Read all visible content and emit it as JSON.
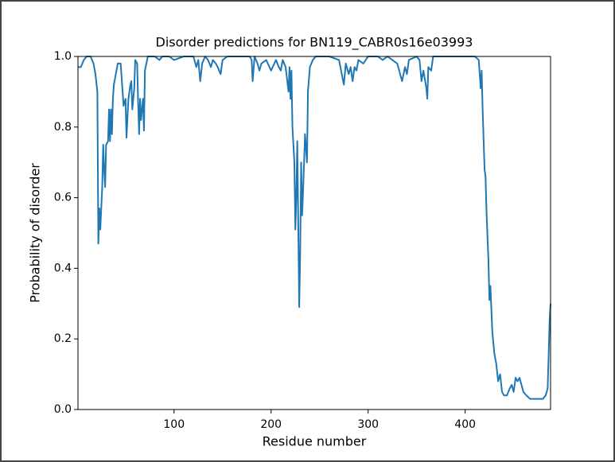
{
  "chart_data": {
    "type": "line",
    "title": "Disorder predictions for BN119_CABR0s16e03993",
    "x_label": "Residue number",
    "y_label": "Probability of disorder",
    "xlim": [
      1,
      488
    ],
    "ylim": [
      0,
      1
    ],
    "xticks": [
      100,
      200,
      300,
      400
    ],
    "yticks": [
      {
        "value": 0,
        "label": "0.0"
      },
      {
        "value": 0.2,
        "label": "0.2"
      },
      {
        "value": 0.4,
        "label": "0.4"
      },
      {
        "value": 0.6,
        "label": "0.6"
      },
      {
        "value": 0.8,
        "label": "0.8"
      },
      {
        "value": 1,
        "label": "1.0"
      }
    ],
    "grid": false,
    "series": [
      {
        "color": "#1f77b4",
        "x": [
          1,
          4,
          7,
          10,
          14,
          17,
          19,
          21,
          22,
          23,
          24,
          26,
          27,
          28,
          29,
          30,
          32,
          33,
          34,
          35,
          36,
          37,
          38,
          40,
          42,
          45,
          47,
          48,
          50,
          51,
          53,
          55,
          56,
          57,
          59,
          60,
          62,
          63,
          64,
          65,
          66,
          68,
          69,
          70,
          73,
          80,
          85,
          88,
          95,
          100,
          110,
          120,
          123,
          125,
          127,
          129,
          132,
          135,
          138,
          140,
          143,
          145,
          148,
          150,
          155,
          170,
          178,
          180,
          181,
          183,
          186,
          188,
          190,
          195,
          200,
          205,
          208,
          210,
          212,
          215,
          218,
          219,
          220,
          221,
          222,
          224,
          225,
          226,
          227,
          229,
          230,
          231,
          232,
          233,
          235,
          237,
          238,
          240,
          243,
          246,
          260,
          270,
          275,
          277,
          280,
          282,
          284,
          286,
          288,
          290,
          295,
          300,
          310,
          315,
          320,
          330,
          335,
          338,
          340,
          342,
          350,
          353,
          355,
          357,
          360,
          361,
          362,
          365,
          367,
          380,
          400,
          410,
          414,
          416,
          417,
          418,
          420,
          421,
          422,
          424,
          425,
          426,
          428,
          430,
          432,
          434,
          436,
          438,
          440,
          443,
          446,
          448,
          450,
          452,
          454,
          456,
          458,
          460,
          463,
          467,
          475,
          480,
          483,
          485,
          486,
          487,
          488
        ],
        "values": [
          0.97,
          0.97,
          0.99,
          1.0,
          1.0,
          0.98,
          0.95,
          0.9,
          0.47,
          0.57,
          0.51,
          0.63,
          0.75,
          0.68,
          0.63,
          0.75,
          0.76,
          0.85,
          0.76,
          0.85,
          0.78,
          0.88,
          0.92,
          0.95,
          0.98,
          0.98,
          0.9,
          0.86,
          0.88,
          0.77,
          0.88,
          0.92,
          0.93,
          0.85,
          0.91,
          0.99,
          0.98,
          0.87,
          0.78,
          0.88,
          0.82,
          0.88,
          0.79,
          0.96,
          1.0,
          1.0,
          0.99,
          1.0,
          1.0,
          0.99,
          1.0,
          1.0,
          0.97,
          0.99,
          0.93,
          0.98,
          1.0,
          0.99,
          0.97,
          0.99,
          0.98,
          0.97,
          0.95,
          0.99,
          1.0,
          1.0,
          1.0,
          0.99,
          0.93,
          1.0,
          0.98,
          0.96,
          0.98,
          0.99,
          0.96,
          0.99,
          0.97,
          0.96,
          0.99,
          0.97,
          0.9,
          0.97,
          0.88,
          0.96,
          0.8,
          0.7,
          0.51,
          0.6,
          0.76,
          0.29,
          0.44,
          0.7,
          0.55,
          0.62,
          0.78,
          0.7,
          0.9,
          0.97,
          0.99,
          1.0,
          1.0,
          0.99,
          0.92,
          0.98,
          0.95,
          0.97,
          0.93,
          0.97,
          0.96,
          0.99,
          0.98,
          1.0,
          1.0,
          0.99,
          1.0,
          0.98,
          0.93,
          0.97,
          0.95,
          0.99,
          1.0,
          0.99,
          0.93,
          0.96,
          0.91,
          0.88,
          0.97,
          0.96,
          1.0,
          1.0,
          1.0,
          1.0,
          0.99,
          0.91,
          0.96,
          0.85,
          0.68,
          0.66,
          0.56,
          0.42,
          0.31,
          0.35,
          0.22,
          0.16,
          0.13,
          0.08,
          0.1,
          0.05,
          0.04,
          0.04,
          0.06,
          0.07,
          0.05,
          0.09,
          0.08,
          0.09,
          0.07,
          0.05,
          0.04,
          0.03,
          0.03,
          0.03,
          0.04,
          0.06,
          0.15,
          0.25,
          0.3
        ]
      }
    ]
  }
}
